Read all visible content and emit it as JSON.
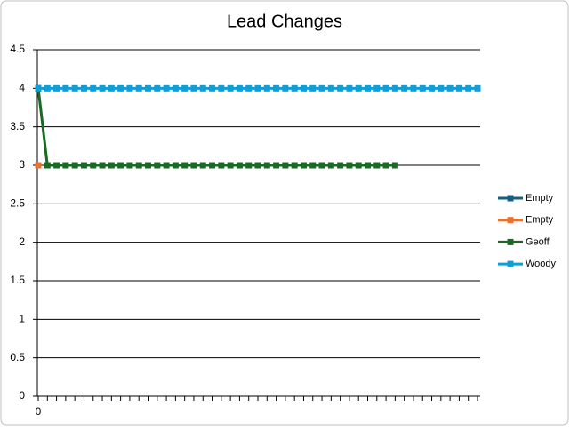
{
  "chart_data": {
    "type": "line",
    "title": "Lead Changes",
    "categories": [
      "0",
      null,
      null,
      null,
      null,
      null,
      null,
      null,
      null,
      null,
      null,
      null,
      null,
      null,
      null,
      null,
      null,
      null,
      null,
      null,
      null,
      null,
      null,
      null,
      null,
      null,
      null,
      null,
      null,
      null,
      null,
      null,
      null,
      null,
      null,
      null,
      null,
      null,
      null,
      null,
      null,
      null,
      null,
      null,
      null,
      null,
      null,
      null,
      null
    ],
    "series": [
      {
        "name": "Empty",
        "color": "#156082",
        "values": [
          4,
          null,
          null,
          null,
          null,
          null,
          null,
          null,
          null,
          null,
          null,
          null,
          null,
          null,
          null,
          null,
          null,
          null,
          null,
          null,
          null,
          null,
          null,
          null,
          null,
          null,
          null,
          null,
          null,
          null,
          null,
          null,
          null,
          null,
          null,
          null,
          null,
          null,
          null,
          null,
          null,
          null,
          null,
          null,
          null,
          null,
          null,
          null,
          null
        ]
      },
      {
        "name": "Empty",
        "color": "#e97132",
        "values": [
          3,
          null,
          null,
          null,
          null,
          null,
          null,
          null,
          null,
          null,
          null,
          null,
          null,
          null,
          null,
          null,
          null,
          null,
          null,
          null,
          null,
          null,
          null,
          null,
          null,
          null,
          null,
          null,
          null,
          null,
          null,
          null,
          null,
          null,
          null,
          null,
          null,
          null,
          null,
          null,
          null,
          null,
          null,
          null,
          null,
          null,
          null,
          null,
          null
        ]
      },
      {
        "name": "Geoff",
        "color": "#196b24",
        "values": [
          4,
          3,
          3,
          3,
          3,
          3,
          3,
          3,
          3,
          3,
          3,
          3,
          3,
          3,
          3,
          3,
          3,
          3,
          3,
          3,
          3,
          3,
          3,
          3,
          3,
          3,
          3,
          3,
          3,
          3,
          3,
          3,
          3,
          3,
          3,
          3,
          3,
          3,
          3,
          3,
          null,
          null,
          null,
          null,
          null,
          null,
          null,
          null,
          null
        ]
      },
      {
        "name": "Woody",
        "color": "#0f9ed5",
        "values": [
          4,
          4,
          4,
          4,
          4,
          4,
          4,
          4,
          4,
          4,
          4,
          4,
          4,
          4,
          4,
          4,
          4,
          4,
          4,
          4,
          4,
          4,
          4,
          4,
          4,
          4,
          4,
          4,
          4,
          4,
          4,
          4,
          4,
          4,
          4,
          4,
          4,
          4,
          4,
          4,
          4,
          4,
          4,
          4,
          4,
          4,
          4,
          4,
          4
        ]
      }
    ],
    "ylim": [
      0,
      4.5
    ],
    "yticks": [
      0,
      0.5,
      1,
      1.5,
      2,
      2.5,
      3,
      3.5,
      4,
      4.5
    ],
    "grid": true,
    "legend": "right"
  }
}
